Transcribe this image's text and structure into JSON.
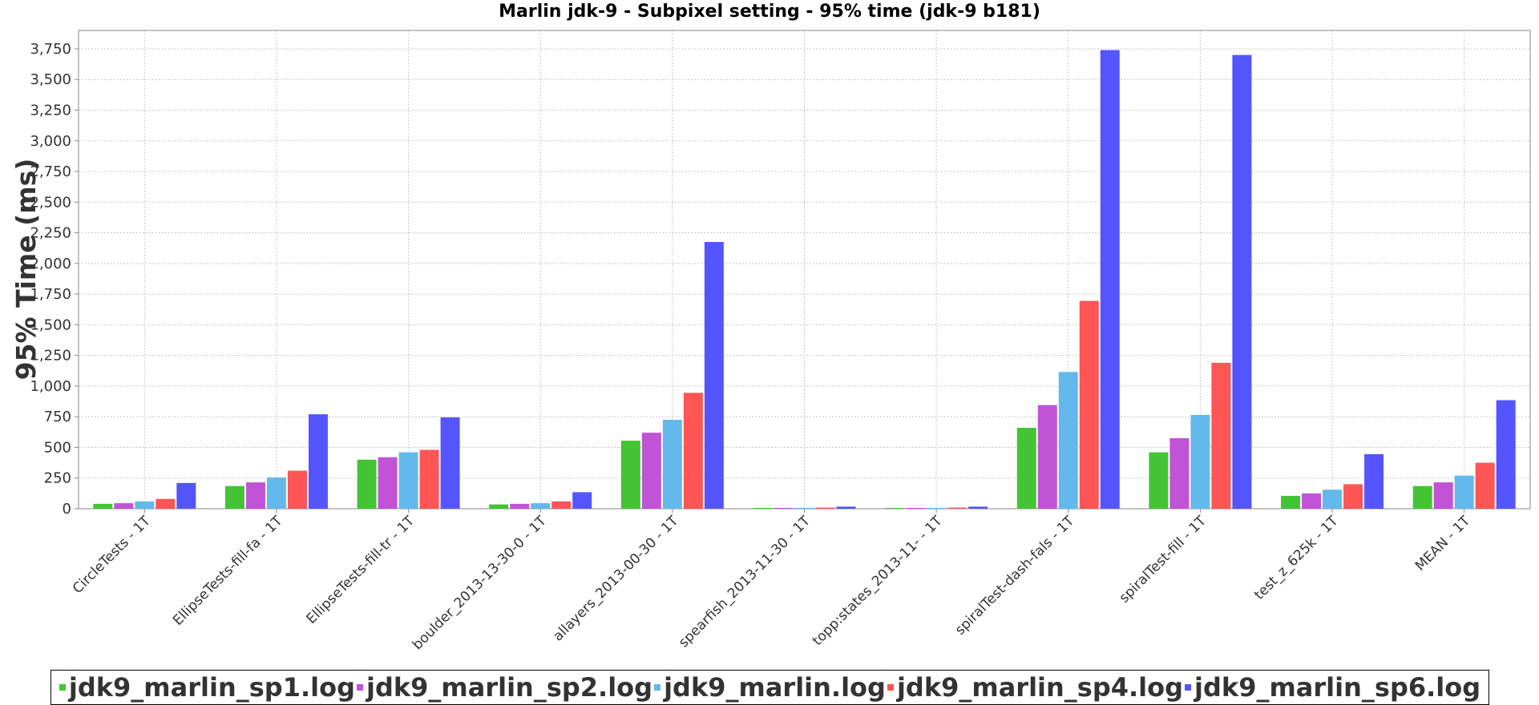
{
  "chart_data": {
    "type": "bar",
    "title": "Marlin jdk-9 - Subpixel setting - 95% time (jdk-9 b181)",
    "ylabel": "95% Time (ms)",
    "xlabel": "",
    "ylim": [
      0,
      3900
    ],
    "yticks": [
      0,
      250,
      500,
      750,
      1000,
      1250,
      1500,
      1750,
      2000,
      2250,
      2500,
      2750,
      3000,
      3250,
      3500,
      3750
    ],
    "ytick_labels": [
      "0",
      "250",
      "500",
      "750",
      "1,000",
      "1,250",
      "1,500",
      "1,750",
      "2,000",
      "2,250",
      "2,500",
      "2,750",
      "3,000",
      "3,250",
      "3,500",
      "3,750"
    ],
    "grid": true,
    "legend_position": "bottom",
    "categories": [
      "CircleTests - 1T",
      "EllipseTests-fill-fa - 1T",
      "EllipseTests-fill-tr - 1T",
      "boulder_2013-13-30-0 - 1T",
      "allayers_2013-00-30 - 1T",
      "spearfish_2013-11-30 - 1T",
      "topp:states_2013-11- - 1T",
      "spiralTest-dash-fals - 1T",
      "spiralTest-fill - 1T",
      "test_z_625k - 1T",
      "MEAN - 1T"
    ],
    "series": [
      {
        "name": "jdk9_marlin_sp1.log",
        "color": "#44c434",
        "values": [
          40,
          185,
          400,
          35,
          555,
          5,
          5,
          660,
          460,
          105,
          185
        ]
      },
      {
        "name": "jdk9_marlin_sp2.log",
        "color": "#c153d6",
        "values": [
          45,
          215,
          420,
          40,
          620,
          6,
          6,
          845,
          575,
          125,
          215
        ]
      },
      {
        "name": "jdk9_marlin.log",
        "color": "#64b9ec",
        "values": [
          60,
          255,
          460,
          45,
          725,
          7,
          7,
          1115,
          765,
          155,
          270
        ]
      },
      {
        "name": "jdk9_marlin_sp4.log",
        "color": "#ff5555",
        "values": [
          80,
          310,
          480,
          60,
          945,
          9,
          9,
          1695,
          1190,
          200,
          375
        ]
      },
      {
        "name": "jdk9_marlin_sp6.log",
        "color": "#5555ff",
        "values": [
          210,
          770,
          745,
          135,
          2175,
          17,
          17,
          3740,
          3700,
          445,
          885
        ]
      }
    ]
  }
}
